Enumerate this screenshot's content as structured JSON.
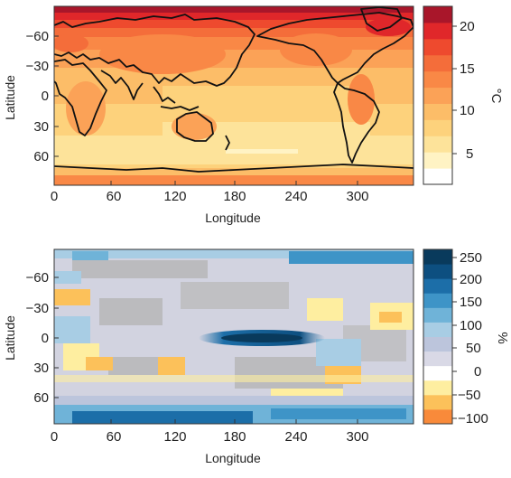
{
  "maps": [
    {
      "id": "temperature",
      "ylabel": "Latitude",
      "xlabel": "Longitude",
      "xticks": [
        "0",
        "60",
        "120",
        "180",
        "240",
        "300"
      ],
      "yticks": [
        "−60",
        "−30",
        "0",
        "30",
        "60"
      ],
      "colorbar": {
        "unit": "°C",
        "ticks": [
          "20",
          "15",
          "10",
          "5"
        ],
        "range": [
          2,
          22
        ],
        "colors": [
          "#ffffff",
          "#fff3c4",
          "#fde39a",
          "#fdd27c",
          "#fcbd68",
          "#fba257",
          "#f98846",
          "#f46d3a",
          "#ee4a2e",
          "#e0272a",
          "#a9162a"
        ]
      },
      "background_color": "#fdd27c"
    },
    {
      "id": "precipitation",
      "ylabel": "Latitude",
      "xlabel": "Longitude",
      "xticks": [
        "0",
        "60",
        "120",
        "180",
        "240",
        "300"
      ],
      "yticks": [
        "−60",
        "−30",
        "0",
        "30",
        "60"
      ],
      "colorbar": {
        "unit": "%",
        "ticks": [
          "250",
          "200",
          "150",
          "100",
          "50",
          "0",
          "−50",
          "−100"
        ],
        "range": [
          -120,
          260
        ],
        "colors": [
          "#f98a3a",
          "#fcc15a",
          "#feeea0",
          "#ffffff",
          "#d9d9e6",
          "#bcc5dc",
          "#a8cde4",
          "#6fb3d8",
          "#3e94c7",
          "#1c6ea8",
          "#0d4f80",
          "#093a5c"
        ]
      },
      "background_color": "#d2d3e0"
    }
  ]
}
